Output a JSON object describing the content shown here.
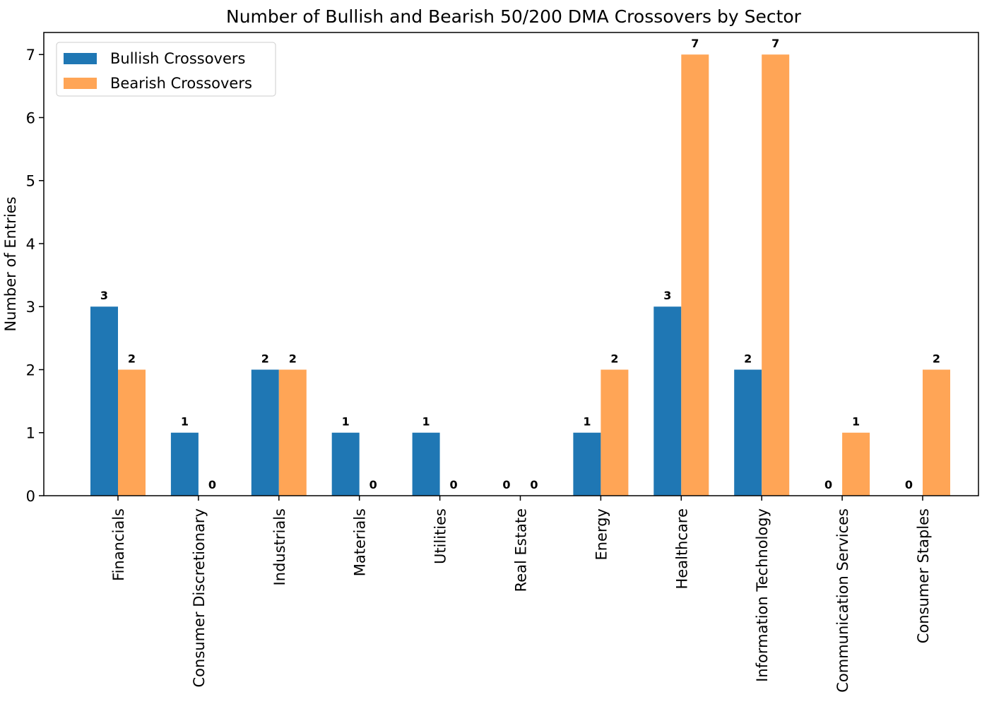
{
  "chart_data": {
    "type": "grouped_bar",
    "title": "Number of Bullish and Bearish 50/200 DMA Crossovers by Sector",
    "y_label": "Number of Entries",
    "categories": [
      "Financials",
      "Consumer Discretionary",
      "Industrials",
      "Materials",
      "Utilities",
      "Real Estate",
      "Energy",
      "Healthcare",
      "Information Technology",
      "Communication Services",
      "Consumer Staples"
    ],
    "series": [
      {
        "name": "Bullish Crossovers",
        "color": "#1f77b4",
        "values": [
          3,
          1,
          2,
          1,
          1,
          0,
          1,
          3,
          2,
          0,
          0
        ]
      },
      {
        "name": "Bearish Crossovers",
        "color": "#ffa556",
        "values": [
          2,
          0,
          2,
          0,
          0,
          0,
          2,
          7,
          7,
          1,
          2
        ]
      }
    ],
    "ylim": [
      0,
      7.35
    ],
    "yticks": [
      0,
      1,
      2,
      3,
      4,
      5,
      6,
      7
    ],
    "legend_loc": "upper left",
    "grid": false
  }
}
